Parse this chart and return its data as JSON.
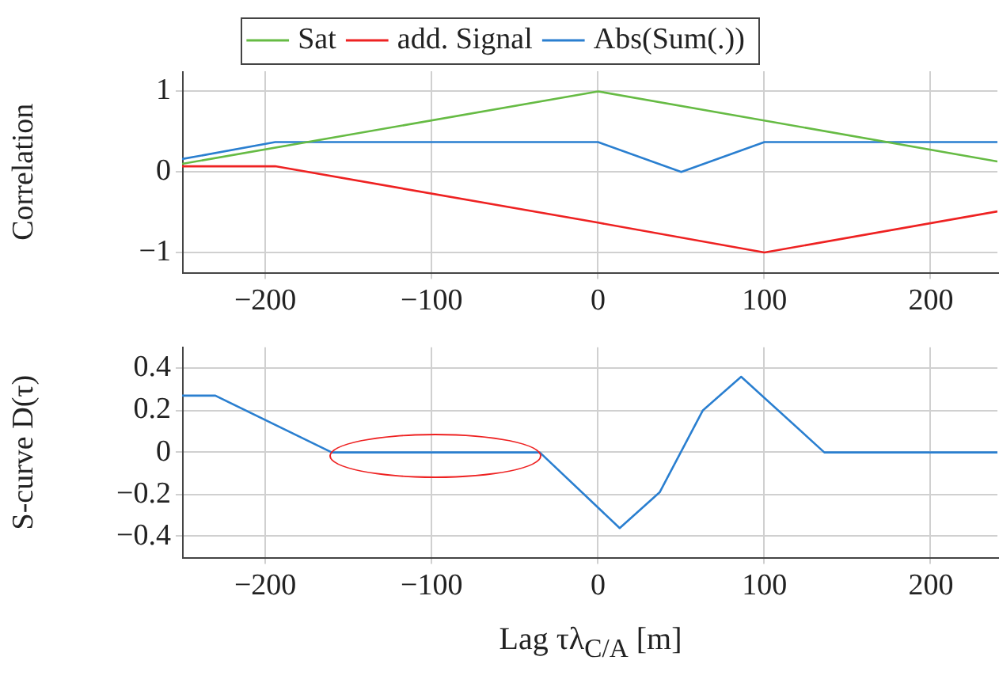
{
  "chart_data": [
    {
      "type": "line",
      "ylabel": "Correlation",
      "legend": "top",
      "grid": true,
      "xlim": [
        -250,
        240
      ],
      "xticks": [
        -200,
        -100,
        0,
        100,
        200
      ],
      "ylim": [
        -1.25,
        1.25
      ],
      "yticks": [
        -1,
        0,
        1
      ],
      "series": [
        {
          "name": "Sat",
          "color": "#66bb44",
          "x": [
            -250,
            0,
            240
          ],
          "values": [
            0.1,
            1,
            0.13
          ]
        },
        {
          "name": "add. Signal",
          "color": "#ee2222",
          "x": [
            -250,
            -194,
            0,
            100,
            240
          ],
          "values": [
            0.07,
            0.07,
            -0.63,
            -1,
            -0.49
          ]
        },
        {
          "name": "Abs(Sum(.))",
          "color": "#2a7fd0",
          "x": [
            -250,
            -194,
            0,
            50,
            100,
            240
          ],
          "values": [
            0.16,
            0.37,
            0.37,
            0,
            0.37,
            0.37
          ]
        }
      ]
    },
    {
      "type": "line",
      "ylabel": "S-curve D(τ)",
      "xlabel": "Lag τλ$_{C/A}$ [m]",
      "grid": true,
      "xlim": [
        -250,
        240
      ],
      "xticks": [
        -200,
        -100,
        0,
        100,
        200
      ],
      "ylim": [
        -0.5,
        0.5
      ],
      "yticks": [
        -0.4,
        -0.2,
        0,
        0.2,
        0.4
      ],
      "series": [
        {
          "color": "#2a7fd0",
          "x": [
            -250,
            -230,
            -160,
            -35,
            13,
            37,
            63,
            86,
            136,
            240
          ],
          "values": [
            0.27,
            0.27,
            0,
            0,
            -0.36,
            -0.19,
            0.2,
            0.36,
            0,
            0
          ]
        }
      ]
    }
  ]
}
